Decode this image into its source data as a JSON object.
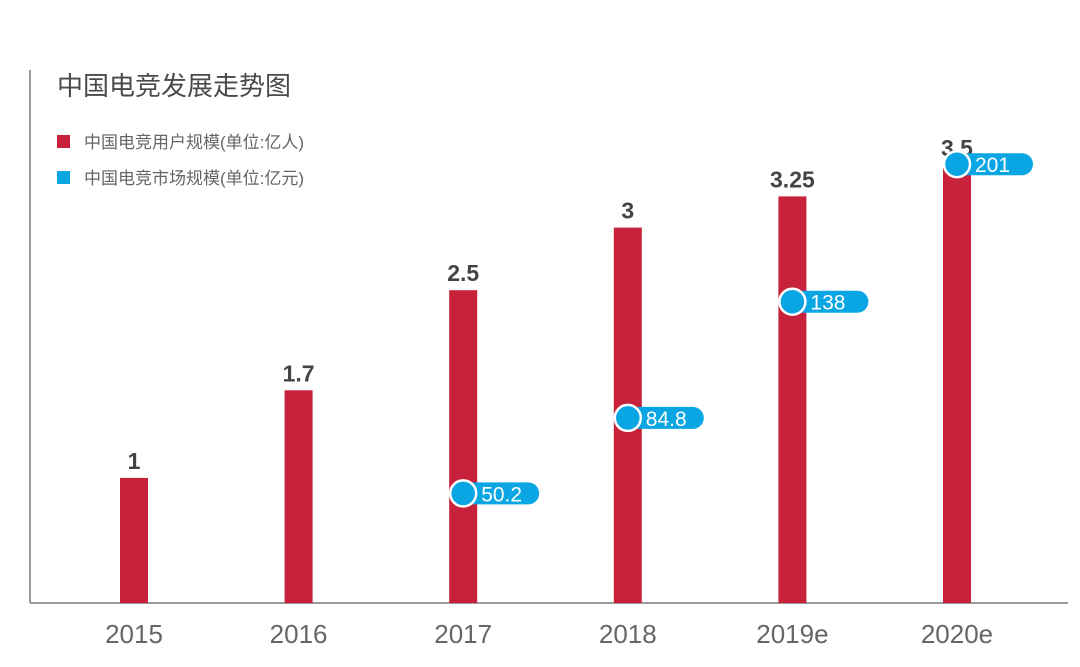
{
  "colors": {
    "bar": "#c8213b",
    "marker": "#0aa5e3",
    "axis": "#9a9a9a",
    "title_text": "#4a4a4a",
    "legend_text": "#666666",
    "value_label": "#444444",
    "tick_label": "#666666",
    "marker_text": "#ffffff"
  },
  "chart_data": {
    "type": "bar",
    "title": "中国电竞发展走势图",
    "categories": [
      "2015",
      "2016",
      "2017",
      "2018",
      "2019e",
      "2020e"
    ],
    "legend_position": "top-left",
    "grid": false,
    "series": [
      {
        "name": "中国电竞用户规模(单位:亿人)",
        "kind": "bar",
        "values": [
          1,
          1.7,
          2.5,
          3,
          3.25,
          3.5
        ],
        "labels": [
          "1",
          "1.7",
          "2.5",
          "3",
          "3.25",
          "3.5"
        ],
        "ylim": [
          0,
          4.1
        ]
      },
      {
        "name": "中国电竞市场规模(单位:亿元)",
        "kind": "marker",
        "values": [
          null,
          null,
          50.2,
          84.8,
          138,
          201
        ],
        "labels": [
          "",
          "",
          "50.2",
          "84.8",
          "138",
          "201"
        ],
        "ylim": [
          0,
          235
        ]
      }
    ]
  }
}
